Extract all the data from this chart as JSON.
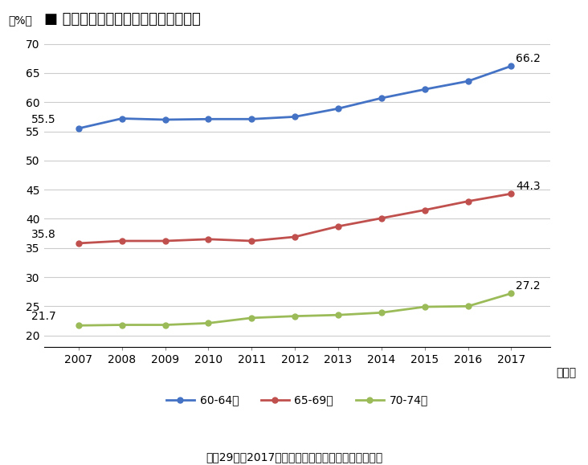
{
  "title": "■ 年齢階級別就業率の推移（男女計）",
  "ylabel": "（%）",
  "xlabel_suffix": "（年）",
  "years": [
    2007,
    2008,
    2009,
    2010,
    2011,
    2012,
    2013,
    2014,
    2015,
    2016,
    2017
  ],
  "series": [
    {
      "label": "60-64歳",
      "values": [
        55.5,
        57.2,
        57.0,
        57.1,
        57.1,
        57.5,
        58.9,
        60.7,
        62.2,
        63.6,
        66.2
      ],
      "color": "#4472C4",
      "first_label": "55.5",
      "last_label": "66.2"
    },
    {
      "label": "65-69歳",
      "values": [
        35.8,
        36.2,
        36.2,
        36.5,
        36.2,
        36.9,
        38.7,
        40.1,
        41.5,
        43.0,
        44.3
      ],
      "color": "#C0504D",
      "first_label": "35.8",
      "last_label": "44.3"
    },
    {
      "label": "70-74歳",
      "values": [
        21.7,
        21.8,
        21.8,
        22.1,
        23.0,
        23.3,
        23.5,
        23.9,
        24.9,
        25.0,
        27.2
      ],
      "color": "#9BBB59",
      "first_label": "21.7",
      "last_label": "27.2"
    }
  ],
  "ylim": [
    18,
    72
  ],
  "yticks": [
    20,
    25,
    30,
    35,
    40,
    45,
    50,
    55,
    60,
    65,
    70
  ],
  "footer": "平成29年（2017年）　労働力調査（総務省統計局）",
  "background_color": "#FFFFFF",
  "grid_color": "#CCCCCC",
  "title_fontsize": 13,
  "axis_fontsize": 10,
  "label_fontsize": 10,
  "legend_fontsize": 10,
  "footer_fontsize": 10
}
